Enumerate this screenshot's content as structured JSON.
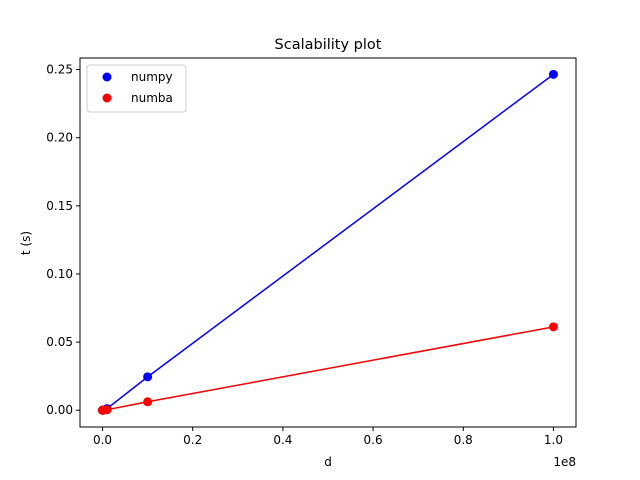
{
  "chart_data": {
    "type": "scatter",
    "title": "Scalability plot",
    "xlabel": "d",
    "ylabel": "t (s)",
    "x_offset_label": "1e8",
    "xlim": [
      -5000000,
      105000000
    ],
    "ylim": [
      -0.0123,
      0.2585
    ],
    "xticks": [
      0,
      20000000,
      40000000,
      60000000,
      80000000,
      100000000
    ],
    "xtick_labels": [
      "0.0",
      "0.2",
      "0.4",
      "0.6",
      "0.8",
      "1.0"
    ],
    "yticks": [
      0.0,
      0.05,
      0.1,
      0.15,
      0.2,
      0.25
    ],
    "ytick_labels": [
      "0.00",
      "0.05",
      "0.10",
      "0.15",
      "0.20",
      "0.25"
    ],
    "grid": false,
    "legend_position": "top-left",
    "x": [
      10,
      100,
      1000,
      10000,
      100000,
      1000000,
      10000000,
      100000000
    ],
    "series": [
      {
        "name": "numpy",
        "color": "#0000ff",
        "values": [
          1e-05,
          1e-05,
          1e-05,
          2e-05,
          0.0002,
          0.0012,
          0.0245,
          0.2465
        ]
      },
      {
        "name": "numba",
        "color": "#ff0000",
        "values": [
          1e-05,
          1e-05,
          1e-05,
          1e-05,
          6e-05,
          0.0004,
          0.0062,
          0.0612
        ]
      }
    ]
  }
}
